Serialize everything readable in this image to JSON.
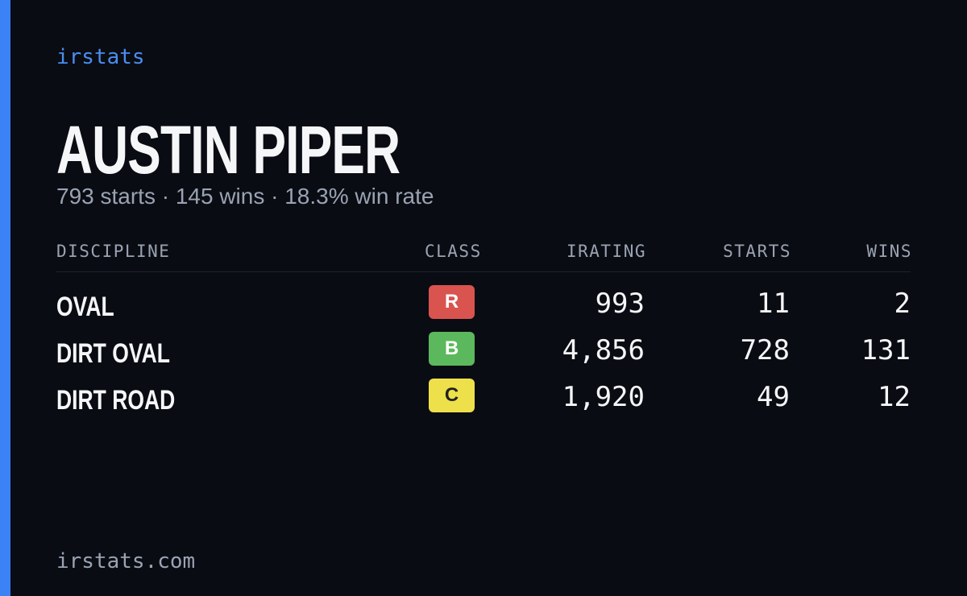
{
  "brand": "irstats",
  "name": "AUSTIN PIPER",
  "summary": "793 starts · 145 wins · 18.3% win rate",
  "table": {
    "headers": [
      "DISCIPLINE",
      "CLASS",
      "IRATING",
      "STARTS",
      "WINS"
    ],
    "rows": [
      [
        "OVAL",
        "R",
        "993",
        "11",
        "2"
      ],
      [
        "DIRT OVAL",
        "B",
        "4,856",
        "728",
        "131"
      ],
      [
        "DIRT ROAD",
        "C",
        "1,920",
        "49",
        "12"
      ]
    ]
  },
  "footer": "irstats.com"
}
